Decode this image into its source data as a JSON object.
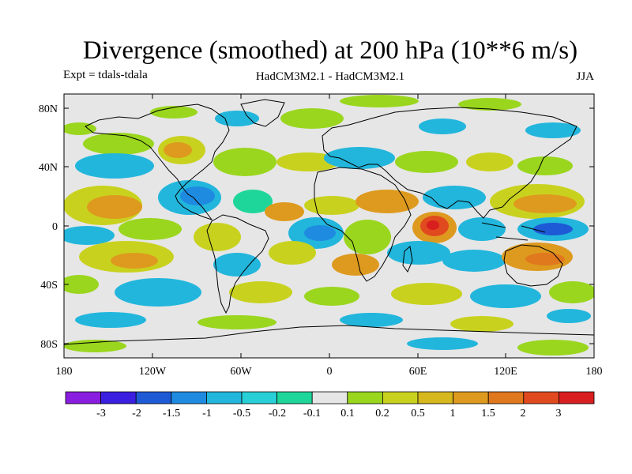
{
  "title": "Divergence (smoothed) at 200 hPa (10**6 m/s)",
  "experiment": "Expt = tdals-tdala",
  "models": "HadCM3M2.1 - HadCM3M2.1",
  "season": "JJA",
  "map": {
    "lat_labels": [
      "80N",
      "40N",
      "0",
      "40S",
      "80S"
    ],
    "lon_labels": [
      "180",
      "120W",
      "60W",
      "0",
      "60E",
      "120E",
      "180"
    ],
    "no_data_color": "#e6e6e6"
  },
  "colorbar": {
    "colors": [
      "#8a1ee0",
      "#3b1fe0",
      "#1e5ad6",
      "#1e8be0",
      "#22b6dc",
      "#28cfd6",
      "#1fd69a",
      "#e6e6e6",
      "#9ad61e",
      "#c8d21e",
      "#d6b81e",
      "#de9a1e",
      "#e0781e",
      "#e04a1e",
      "#d81e1e"
    ],
    "labels": [
      "-3",
      "-2",
      "-1.5",
      "-1",
      "-0.5",
      "-0.2",
      "-0.1",
      "0.1",
      "0.2",
      "0.5",
      "1",
      "1.5",
      "2",
      "3"
    ]
  }
}
